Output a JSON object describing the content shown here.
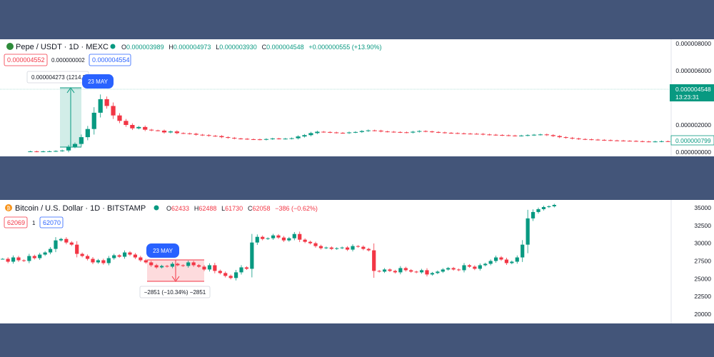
{
  "background_color": "#435579",
  "chart_data": [
    {
      "type": "candlestick",
      "title": "Pepe / USDT · 1D · MEXC",
      "ohlc": {
        "o": "0.000003989",
        "h": "0.000004973",
        "l": "0.000003930",
        "c": "0.000004548",
        "change": "+0.000000555 (+13.90%)"
      },
      "bid": "0.000004552",
      "spread": "0.000000002",
      "ask": "0.000004554",
      "y_ticks": [
        "0.000008000",
        "0.000006000",
        "0.000002000",
        "0.000000000"
      ],
      "ylim": [
        0,
        8e-06
      ],
      "current_price_label": "0.000004548",
      "countdown": "13:23:31",
      "secondary_price_label": "0.000000799",
      "measure_label": "0.000004273 (1214.3",
      "date_badge": "23 MAY",
      "up_color": "#089981",
      "down_color": "#f23645",
      "closes": [
        5e-08,
        4e-08,
        5e-08,
        6e-08,
        8e-08,
        1.2e-07,
        4e-07,
        6e-07,
        1.1e-06,
        1.7e-06,
        2.9e-06,
        3.9e-06,
        3.4e-06,
        2.7e-06,
        2.3e-06,
        2e-06,
        1.75e-06,
        1.85e-06,
        1.65e-06,
        1.6e-06,
        1.58e-06,
        1.45e-06,
        1.52e-06,
        1.4e-06,
        1.38e-06,
        1.35e-06,
        1.28e-06,
        1.25e-06,
        1.2e-06,
        1.18e-06,
        1.1e-06,
        1.05e-06,
        1e-06,
        9.8e-07,
        9.5e-07,
        9.4e-07,
        9.2e-07,
        9.6e-07,
        1e-06,
        9.8e-07,
        9.9e-07,
        1.02e-06,
        1.15e-06,
        1.25e-06,
        1.4e-06,
        1.5e-06,
        1.48e-06,
        1.45e-06,
        1.42e-06,
        1.4e-06,
        1.45e-06,
        1.48e-06,
        1.55e-06,
        1.6e-06,
        1.58e-06,
        1.52e-06,
        1.5e-06,
        1.48e-06,
        1.46e-06,
        1.44e-06,
        1.5e-06,
        1.55e-06,
        1.52e-06,
        1.48e-06,
        1.45e-06,
        1.42e-06,
        1.4e-06,
        1.38e-06,
        1.36e-06,
        1.35e-06,
        1.34e-06,
        1.3e-06,
        1.28e-06,
        1.26e-06,
        1.24e-06,
        1.22e-06,
        1.2e-06,
        1.22e-06,
        1.25e-06,
        1.28e-06,
        1.3e-06,
        1.25e-06,
        1.18e-06,
        1.1e-06,
        1.05e-06,
        1e-06,
        9.6e-07,
        9.4e-07,
        9.2e-07,
        9e-07,
        8.8e-07,
        8.6e-07,
        8.5e-07,
        8.3e-07,
        8.2e-07,
        8e-07,
        7.8e-07,
        7.7e-07,
        7.8e-07,
        8e-07,
        7.9e-07
      ]
    },
    {
      "type": "candlestick",
      "title": "Bitcoin / U.S. Dollar · 1D · BITSTAMP",
      "ohlc": {
        "o": "62433",
        "h": "62488",
        "l": "61730",
        "c": "62058",
        "change": "−386 (−0.62%)"
      },
      "bid": "62069",
      "spread": "1",
      "ask": "62070",
      "y_ticks": [
        "35000",
        "32500",
        "30000",
        "27500",
        "25000",
        "22500",
        "20000"
      ],
      "ylim": [
        19000,
        35700
      ],
      "measure_label": "−2851 (−10.34%) −2851",
      "date_badge": "23 MAY",
      "up_color": "#089981",
      "down_color": "#f23645",
      "closes": [
        27800,
        27400,
        28000,
        27600,
        27500,
        28200,
        27900,
        28400,
        28700,
        29200,
        30400,
        30600,
        30100,
        29800,
        28500,
        28200,
        27800,
        27300,
        27600,
        27200,
        27900,
        28300,
        28100,
        28700,
        28400,
        28000,
        27600,
        27300,
        26900,
        26600,
        26800,
        26700,
        27100,
        26900,
        26800,
        27300,
        26900,
        26700,
        26300,
        26900,
        26100,
        25800,
        25400,
        25100,
        25900,
        26600,
        26400,
        30100,
        30900,
        30600,
        30700,
        31100,
        30800,
        30400,
        30700,
        31300,
        30500,
        30200,
        30000,
        29600,
        29300,
        29400,
        29200,
        29300,
        29400,
        29100,
        29600,
        29500,
        29200,
        29000,
        26100,
        26000,
        26300,
        26100,
        25900,
        26500,
        26200,
        26000,
        25900,
        26200,
        25600,
        25800,
        26000,
        26300,
        26500,
        26300,
        26200,
        26900,
        26700,
        26400,
        26900,
        27100,
        27500,
        28000,
        27700,
        27200,
        27400,
        28000,
        29800,
        33500,
        34400,
        34800,
        35100,
        35200,
        35400
      ]
    }
  ]
}
